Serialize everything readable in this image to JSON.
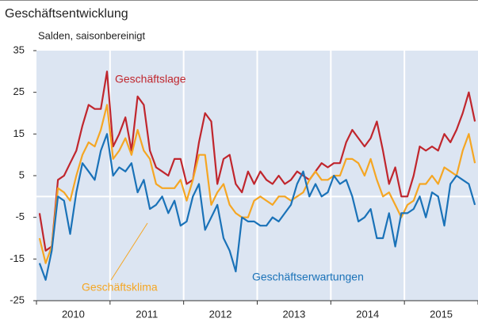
{
  "chart_data": {
    "type": "line",
    "title": "Geschäftsentwicklung",
    "subtitle": "Salden, saisonbereinigt",
    "categories": [
      null,
      null,
      null,
      null,
      null,
      null,
      "2010",
      null,
      null,
      null,
      null,
      null,
      null,
      null,
      null,
      null,
      null,
      null,
      "2011",
      null,
      null,
      null,
      null,
      null,
      null,
      null,
      null,
      null,
      null,
      null,
      "2012",
      null,
      null,
      null,
      null,
      null,
      null,
      null,
      null,
      null,
      null,
      null,
      "2013",
      null,
      null,
      null,
      null,
      null,
      null,
      null,
      null,
      null,
      null,
      null,
      "2014",
      null,
      null,
      null,
      null,
      null,
      null,
      null,
      null,
      null,
      null,
      null,
      "2015",
      null,
      null,
      null,
      null,
      null
    ],
    "ylim": [
      -25,
      35
    ],
    "yticks": [
      -25,
      -15,
      -5,
      5,
      15,
      25,
      35
    ],
    "reference_line": 0,
    "series": [
      {
        "name": "Geschäftslage",
        "color": "#c0262d",
        "values": [
          -4,
          -13,
          -12,
          4,
          5,
          8,
          11,
          17,
          22,
          21,
          21,
          30,
          12,
          15,
          19,
          11,
          24,
          22,
          11,
          7,
          6,
          5,
          9,
          9,
          3,
          4,
          13,
          20,
          18,
          3,
          9,
          10,
          3,
          1,
          6,
          3,
          6,
          4,
          3,
          5,
          3,
          4,
          6,
          5,
          4,
          6,
          8,
          7,
          8,
          8,
          13,
          16,
          14,
          12,
          14,
          18,
          11,
          3,
          7,
          0,
          0,
          5,
          12,
          11,
          12,
          11,
          15,
          13,
          16,
          20,
          25,
          18
        ]
      },
      {
        "name": "Geschäftsklima",
        "color": "#f5a623",
        "values": [
          -10,
          -16,
          -12,
          2,
          1,
          -1,
          5,
          10,
          13,
          12,
          16,
          22,
          9,
          11,
          14,
          10,
          16,
          11,
          9,
          3,
          2,
          2,
          2,
          4,
          -1,
          4,
          10,
          10,
          -2,
          1,
          3,
          -2,
          -4,
          -5,
          -5,
          -1,
          0,
          -1,
          -2,
          0,
          0,
          -1,
          0,
          1,
          4,
          6,
          4,
          4,
          5,
          5,
          9,
          9,
          8,
          5,
          9,
          4,
          0,
          1,
          -2,
          -5,
          -2,
          -1,
          3,
          3,
          5,
          3,
          7,
          6,
          5,
          11,
          15,
          8
        ]
      },
      {
        "name": "Geschäftserwartungen",
        "color": "#1a72b8",
        "values": [
          -16,
          -20,
          -13,
          0,
          -1,
          -9,
          1,
          8,
          6,
          4,
          11,
          15,
          5,
          7,
          6,
          8,
          1,
          4,
          -3,
          -2,
          0,
          -4,
          -1,
          -7,
          -6,
          0,
          3,
          -8,
          -5,
          -2,
          -10,
          -13,
          -18,
          -5,
          -6,
          -6,
          -7,
          -7,
          -5,
          -6,
          -4,
          -2,
          3,
          6,
          0,
          3,
          0,
          1,
          5,
          3,
          4,
          0,
          -6,
          -5,
          -3,
          -10,
          -10,
          -4,
          -12,
          -4,
          -4,
          -3,
          0,
          -5,
          1,
          0,
          -7,
          3,
          5,
          4,
          3,
          -2
        ]
      }
    ]
  }
}
